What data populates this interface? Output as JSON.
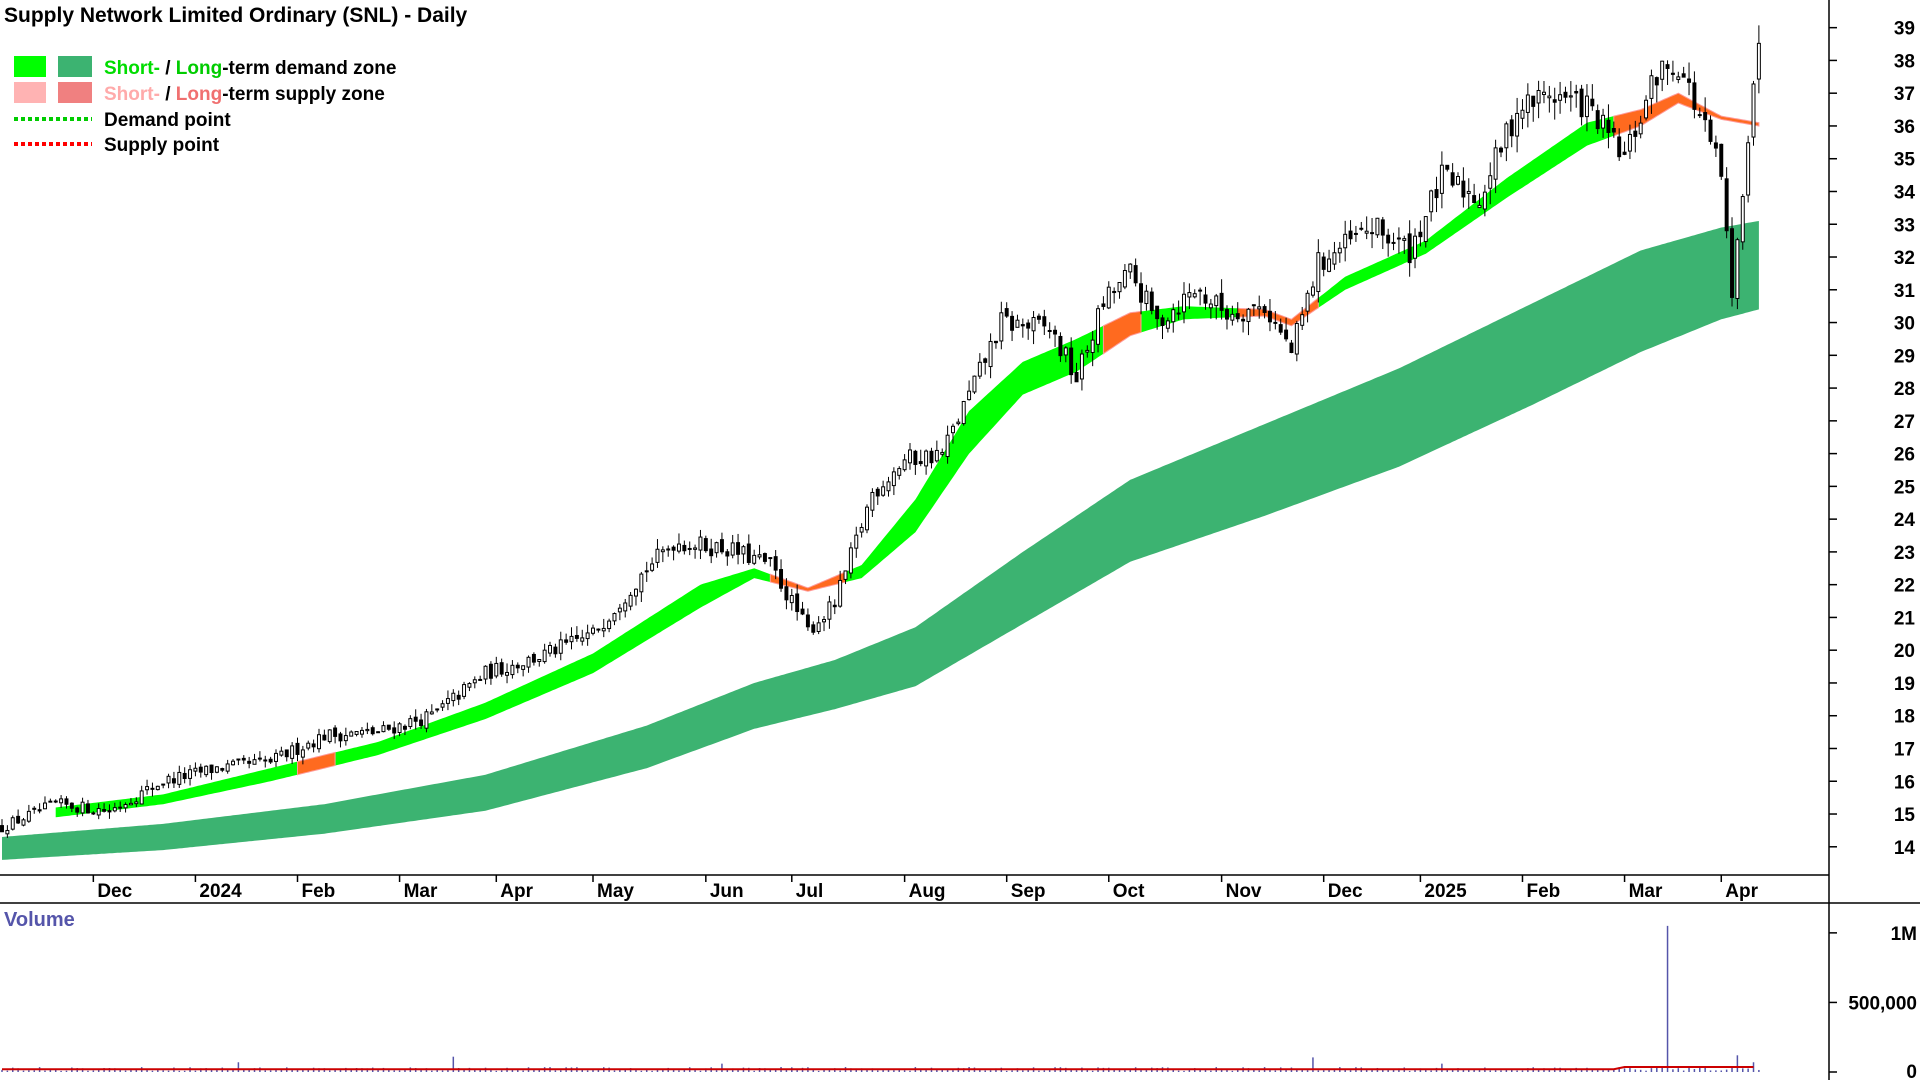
{
  "chart_data": {
    "type": "candlestick",
    "title": "Supply Network Limited Ordinary (SNL) - Daily",
    "legend": [
      {
        "swatches": [
          "#00ff00",
          "#3cb371"
        ],
        "parts": [
          {
            "text": "Short-",
            "color": "#00dd00"
          },
          {
            "text": " / ",
            "color": "#000000"
          },
          {
            "text": "Long",
            "color": "#00cc00"
          },
          {
            "text": "-term demand zone",
            "color": "#000000"
          }
        ]
      },
      {
        "swatches": [
          "#ffb3b3",
          "#f08080"
        ],
        "parts": [
          {
            "text": "Short-",
            "color": "#ffaaaa"
          },
          {
            "text": " / ",
            "color": "#000000"
          },
          {
            "text": "Long",
            "color": "#f07070"
          },
          {
            "text": "-term supply zone",
            "color": "#000000"
          }
        ]
      },
      {
        "line_color": "#00cc00",
        "label": "Demand point"
      },
      {
        "line_color": "#ff0000",
        "label": "Supply point"
      }
    ],
    "price_axis": {
      "min": 13.2,
      "max": 39.6,
      "ticks": [
        14,
        15,
        16,
        17,
        18,
        19,
        20,
        21,
        22,
        23,
        24,
        25,
        26,
        27,
        28,
        29,
        30,
        31,
        32,
        33,
        34,
        35,
        36,
        37,
        38,
        39
      ]
    },
    "time_axis": {
      "labels": [
        "Dec",
        "2024",
        "Feb",
        "Mar",
        "Apr",
        "May",
        "Jun",
        "Jul",
        "Aug",
        "Sep",
        "Oct",
        "Nov",
        "Dec",
        "2025",
        "Feb",
        "Mar",
        "Apr"
      ],
      "label_positions_in_sessions": [
        17,
        36,
        55,
        74,
        92,
        110,
        131,
        147,
        168,
        187,
        206,
        227,
        246,
        264,
        283,
        302,
        320
      ],
      "session_range": [
        0,
        330
      ]
    },
    "price_anchors": [
      {
        "session": 0,
        "price": 14.6
      },
      {
        "session": 10,
        "price": 15.3
      },
      {
        "session": 20,
        "price": 15.1
      },
      {
        "session": 30,
        "price": 16.0
      },
      {
        "session": 40,
        "price": 16.4
      },
      {
        "session": 50,
        "price": 16.6
      },
      {
        "session": 60,
        "price": 17.4
      },
      {
        "session": 70,
        "price": 17.5
      },
      {
        "session": 80,
        "price": 18.0
      },
      {
        "session": 90,
        "price": 19.3
      },
      {
        "session": 100,
        "price": 19.8
      },
      {
        "session": 110,
        "price": 20.5
      },
      {
        "session": 120,
        "price": 22.5
      },
      {
        "session": 125,
        "price": 23.3
      },
      {
        "session": 135,
        "price": 23.1
      },
      {
        "session": 143,
        "price": 22.6
      },
      {
        "session": 150,
        "price": 20.6
      },
      {
        "session": 155,
        "price": 21.4
      },
      {
        "session": 162,
        "price": 24.8
      },
      {
        "session": 168,
        "price": 25.8
      },
      {
        "session": 175,
        "price": 26.0
      },
      {
        "session": 182,
        "price": 28.5
      },
      {
        "session": 186,
        "price": 30.0
      },
      {
        "session": 195,
        "price": 29.8
      },
      {
        "session": 200,
        "price": 28.3
      },
      {
        "session": 205,
        "price": 30.6
      },
      {
        "session": 210,
        "price": 31.5
      },
      {
        "session": 215,
        "price": 30.0
      },
      {
        "session": 222,
        "price": 31.0
      },
      {
        "session": 228,
        "price": 30.3
      },
      {
        "session": 235,
        "price": 30.5
      },
      {
        "session": 240,
        "price": 29.1
      },
      {
        "session": 245,
        "price": 31.8
      },
      {
        "session": 255,
        "price": 32.9
      },
      {
        "session": 262,
        "price": 32.2
      },
      {
        "session": 268,
        "price": 34.4
      },
      {
        "session": 275,
        "price": 33.8
      },
      {
        "session": 282,
        "price": 36.5
      },
      {
        "session": 288,
        "price": 37.0
      },
      {
        "session": 295,
        "price": 36.6
      },
      {
        "session": 302,
        "price": 35.0
      },
      {
        "session": 308,
        "price": 37.6
      },
      {
        "session": 312,
        "price": 37.9
      },
      {
        "session": 316,
        "price": 36.3
      },
      {
        "session": 320,
        "price": 34.5
      },
      {
        "session": 322,
        "price": 30.6
      },
      {
        "session": 324,
        "price": 34.2
      },
      {
        "session": 326,
        "price": 37.5
      },
      {
        "session": 327,
        "price": 38.2
      }
    ],
    "short_term_zone": [
      {
        "session": 10,
        "upper": 15.2,
        "lower": 14.9
      },
      {
        "session": 30,
        "upper": 15.6,
        "lower": 15.3
      },
      {
        "session": 50,
        "upper": 16.4,
        "lower": 16.0
      },
      {
        "session": 70,
        "upper": 17.2,
        "lower": 16.8
      },
      {
        "session": 90,
        "upper": 18.4,
        "lower": 17.9
      },
      {
        "session": 110,
        "upper": 19.9,
        "lower": 19.3
      },
      {
        "session": 130,
        "upper": 22.0,
        "lower": 21.3
      },
      {
        "session": 140,
        "upper": 22.5,
        "lower": 22.2
      },
      {
        "session": 150,
        "upper": 21.9,
        "lower": 21.8
      },
      {
        "session": 160,
        "upper": 22.6,
        "lower": 22.2
      },
      {
        "session": 170,
        "upper": 24.6,
        "lower": 23.6
      },
      {
        "session": 180,
        "upper": 27.3,
        "lower": 26.0
      },
      {
        "session": 190,
        "upper": 28.8,
        "lower": 27.8
      },
      {
        "session": 200,
        "upper": 29.5,
        "lower": 28.5
      },
      {
        "session": 210,
        "upper": 30.3,
        "lower": 29.6
      },
      {
        "session": 220,
        "upper": 30.5,
        "lower": 30.1
      },
      {
        "session": 235,
        "upper": 30.4,
        "lower": 30.2
      },
      {
        "session": 240,
        "upper": 30.1,
        "lower": 29.9
      },
      {
        "session": 250,
        "upper": 31.4,
        "lower": 31.0
      },
      {
        "session": 265,
        "upper": 32.5,
        "lower": 32.1
      },
      {
        "session": 280,
        "upper": 34.4,
        "lower": 33.8
      },
      {
        "session": 295,
        "upper": 36.1,
        "lower": 35.4
      },
      {
        "session": 305,
        "upper": 36.5,
        "lower": 36.0
      },
      {
        "session": 312,
        "upper": 37.0,
        "lower": 36.7
      },
      {
        "session": 320,
        "upper": 36.3,
        "lower": 36.2
      },
      {
        "session": 327,
        "upper": 36.1,
        "lower": 36.0
      }
    ],
    "long_term_zone": [
      {
        "session": 0,
        "upper": 14.3,
        "lower": 13.6
      },
      {
        "session": 30,
        "upper": 14.7,
        "lower": 13.9
      },
      {
        "session": 60,
        "upper": 15.3,
        "lower": 14.4
      },
      {
        "session": 90,
        "upper": 16.2,
        "lower": 15.1
      },
      {
        "session": 120,
        "upper": 17.7,
        "lower": 16.4
      },
      {
        "session": 140,
        "upper": 19.0,
        "lower": 17.6
      },
      {
        "session": 155,
        "upper": 19.7,
        "lower": 18.2
      },
      {
        "session": 170,
        "upper": 20.7,
        "lower": 18.9
      },
      {
        "session": 190,
        "upper": 23.0,
        "lower": 20.8
      },
      {
        "session": 210,
        "upper": 25.2,
        "lower": 22.7
      },
      {
        "session": 235,
        "upper": 26.9,
        "lower": 24.1
      },
      {
        "session": 260,
        "upper": 28.6,
        "lower": 25.6
      },
      {
        "session": 285,
        "upper": 30.6,
        "lower": 27.5
      },
      {
        "session": 305,
        "upper": 32.2,
        "lower": 29.1
      },
      {
        "session": 320,
        "upper": 32.9,
        "lower": 30.1
      },
      {
        "session": 327,
        "upper": 33.1,
        "lower": 30.4
      }
    ],
    "supply_segments": [
      [
        55,
        62
      ],
      [
        143,
        157
      ],
      [
        205,
        212
      ],
      [
        230,
        245
      ],
      [
        300,
        327
      ]
    ],
    "volume": {
      "label": "Volume",
      "axis_ticks": [
        {
          "value": 0,
          "label": "0"
        },
        {
          "value": 500000,
          "label": "500,000"
        },
        {
          "value": 1000000,
          "label": "1M"
        }
      ],
      "max": 1150000,
      "typical": 20000,
      "spikes": [
        {
          "session": 44,
          "value": 70000
        },
        {
          "session": 84,
          "value": 110000
        },
        {
          "session": 134,
          "value": 60000
        },
        {
          "session": 244,
          "value": 105000
        },
        {
          "session": 268,
          "value": 60000
        },
        {
          "session": 310,
          "value": 1050000
        },
        {
          "session": 323,
          "value": 120000
        },
        {
          "session": 326,
          "value": 70000
        }
      ]
    },
    "colors": {
      "short_zone": "#00ff00",
      "long_zone": "#3cb371",
      "supply": "#ff6a1f",
      "supply_light": "#ff9a9a",
      "candle": "#000000",
      "volume_bar": "#5555aa",
      "volume_avg": "#cc0000",
      "volume_label": "#5555aa"
    }
  }
}
